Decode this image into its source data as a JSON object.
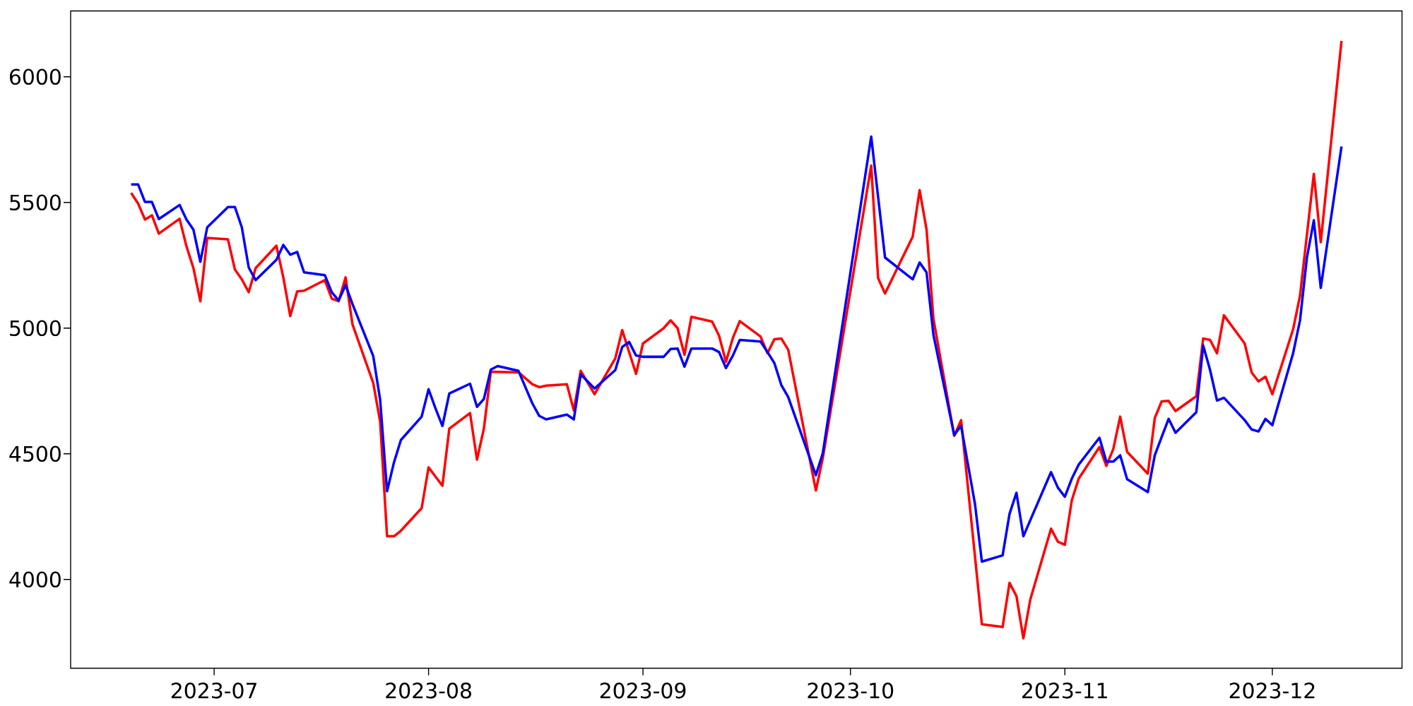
{
  "chart_data": {
    "type": "line",
    "xlim": [
      "2023-06-10T06:00",
      "2023-12-19T18:00"
    ],
    "ylim": [
      3647,
      6262
    ],
    "xticks": [
      {
        "value": "2023-07-01",
        "label": "2023-07"
      },
      {
        "value": "2023-08-01",
        "label": "2023-08"
      },
      {
        "value": "2023-09-01",
        "label": "2023-09"
      },
      {
        "value": "2023-10-01",
        "label": "2023-10"
      },
      {
        "value": "2023-11-01",
        "label": "2023-11"
      },
      {
        "value": "2023-12-01",
        "label": "2023-12"
      }
    ],
    "yticks": [
      4000,
      4500,
      5000,
      5500,
      6000
    ],
    "marker": "none",
    "line_style": "solid",
    "series": [
      {
        "color": "#ff0000",
        "x": [
          "2023-06-19",
          "2023-06-20",
          "2023-06-21",
          "2023-06-22",
          "2023-06-23",
          "2023-06-26",
          "2023-06-27",
          "2023-06-28",
          "2023-06-29",
          "2023-06-30",
          "2023-07-03",
          "2023-07-04",
          "2023-07-05",
          "2023-07-06",
          "2023-07-07",
          "2023-07-10",
          "2023-07-11",
          "2023-07-12",
          "2023-07-13",
          "2023-07-14",
          "2023-07-17",
          "2023-07-18",
          "2023-07-19",
          "2023-07-20",
          "2023-07-21",
          "2023-07-24",
          "2023-07-25",
          "2023-07-26",
          "2023-07-27",
          "2023-07-28",
          "2023-07-31",
          "2023-08-01",
          "2023-08-03",
          "2023-08-04",
          "2023-08-07",
          "2023-08-08",
          "2023-08-09",
          "2023-08-10",
          "2023-08-14",
          "2023-08-16",
          "2023-08-17",
          "2023-08-18",
          "2023-08-21",
          "2023-08-22",
          "2023-08-23",
          "2023-08-25",
          "2023-08-28",
          "2023-08-29",
          "2023-08-31",
          "2023-09-01",
          "2023-09-04",
          "2023-09-05",
          "2023-09-06",
          "2023-09-07",
          "2023-09-08",
          "2023-09-11",
          "2023-09-12",
          "2023-09-13",
          "2023-09-14",
          "2023-09-15",
          "2023-09-18",
          "2023-09-19",
          "2023-09-20",
          "2023-09-21",
          "2023-09-22",
          "2023-09-26",
          "2023-09-27",
          "2023-10-04",
          "2023-10-05",
          "2023-10-06",
          "2023-10-10",
          "2023-10-11",
          "2023-10-12",
          "2023-10-13",
          "2023-10-16",
          "2023-10-17",
          "2023-10-20",
          "2023-10-23",
          "2023-10-24",
          "2023-10-25",
          "2023-10-26",
          "2023-10-27",
          "2023-10-30",
          "2023-10-31",
          "2023-11-01",
          "2023-11-02",
          "2023-11-03",
          "2023-11-06",
          "2023-11-07",
          "2023-11-08",
          "2023-11-09",
          "2023-11-10",
          "2023-11-13",
          "2023-11-14",
          "2023-11-15",
          "2023-11-16",
          "2023-11-17",
          "2023-11-20",
          "2023-11-21",
          "2023-11-22",
          "2023-11-23",
          "2023-11-24",
          "2023-11-27",
          "2023-11-28",
          "2023-11-29",
          "2023-11-30",
          "2023-12-01",
          "2023-12-04",
          "2023-12-05",
          "2023-12-07",
          "2023-12-08",
          "2023-12-11"
        ],
        "values": [
          5538,
          5496,
          5432,
          5449,
          5376,
          5435,
          5325,
          5239,
          5107,
          5359,
          5353,
          5233,
          5194,
          5143,
          5239,
          5328,
          5202,
          5048,
          5146,
          5149,
          5191,
          5118,
          5107,
          5202,
          5015,
          4782,
          4628,
          4172,
          4172,
          4194,
          4284,
          4446,
          4373,
          4600,
          4662,
          4477,
          4600,
          4827,
          4824,
          4777,
          4765,
          4771,
          4777,
          4673,
          4830,
          4737,
          4880,
          4992,
          4818,
          4939,
          5000,
          5031,
          5000,
          4894,
          5045,
          5026,
          4970,
          4866,
          4961,
          5028,
          4967,
          4900,
          4956,
          4959,
          4914,
          4354,
          4483,
          5647,
          5199,
          5138,
          5364,
          5549,
          5393,
          5037,
          4572,
          4634,
          3822,
          3811,
          3987,
          3934,
          3766,
          3920,
          4202,
          4150,
          4138,
          4315,
          4401,
          4527,
          4452,
          4519,
          4648,
          4508,
          4421,
          4642,
          4709,
          4711,
          4670,
          4729,
          4959,
          4953,
          4900,
          5051,
          4939,
          4824,
          4788,
          4807,
          4737,
          4995,
          5129,
          5614,
          5342,
          6143
        ]
      },
      {
        "color": "#0000ff",
        "x": [
          "2023-06-19",
          "2023-06-20",
          "2023-06-21",
          "2023-06-22",
          "2023-06-23",
          "2023-06-26",
          "2023-06-27",
          "2023-06-28",
          "2023-06-29",
          "2023-06-30",
          "2023-07-03",
          "2023-07-04",
          "2023-07-05",
          "2023-07-06",
          "2023-07-07",
          "2023-07-10",
          "2023-07-11",
          "2023-07-12",
          "2023-07-13",
          "2023-07-14",
          "2023-07-17",
          "2023-07-18",
          "2023-07-19",
          "2023-07-20",
          "2023-07-21",
          "2023-07-24",
          "2023-07-25",
          "2023-07-26",
          "2023-07-27",
          "2023-07-28",
          "2023-07-31",
          "2023-08-01",
          "2023-08-02",
          "2023-08-03",
          "2023-08-04",
          "2023-08-07",
          "2023-08-08",
          "2023-08-09",
          "2023-08-10",
          "2023-08-11",
          "2023-08-14",
          "2023-08-16",
          "2023-08-17",
          "2023-08-18",
          "2023-08-21",
          "2023-08-22",
          "2023-08-23",
          "2023-08-25",
          "2023-08-28",
          "2023-08-29",
          "2023-08-30",
          "2023-08-31",
          "2023-09-01",
          "2023-09-04",
          "2023-09-05",
          "2023-09-06",
          "2023-09-07",
          "2023-09-08",
          "2023-09-11",
          "2023-09-12",
          "2023-09-13",
          "2023-09-14",
          "2023-09-15",
          "2023-09-18",
          "2023-09-19",
          "2023-09-20",
          "2023-09-21",
          "2023-09-22",
          "2023-09-26",
          "2023-09-27",
          "2023-10-04",
          "2023-10-06",
          "2023-10-10",
          "2023-10-11",
          "2023-10-12",
          "2023-10-13",
          "2023-10-16",
          "2023-10-17",
          "2023-10-19",
          "2023-10-20",
          "2023-10-23",
          "2023-10-24",
          "2023-10-25",
          "2023-10-26",
          "2023-10-30",
          "2023-10-31",
          "2023-11-01",
          "2023-11-02",
          "2023-11-03",
          "2023-11-06",
          "2023-11-07",
          "2023-11-08",
          "2023-11-09",
          "2023-11-10",
          "2023-11-13",
          "2023-11-14",
          "2023-11-15",
          "2023-11-16",
          "2023-11-17",
          "2023-11-20",
          "2023-11-21",
          "2023-11-22",
          "2023-11-23",
          "2023-11-24",
          "2023-11-27",
          "2023-11-28",
          "2023-11-29",
          "2023-11-30",
          "2023-12-01",
          "2023-12-04",
          "2023-12-05",
          "2023-12-06",
          "2023-12-07",
          "2023-12-08",
          "2023-12-11"
        ],
        "values": [
          5572,
          5572,
          5502,
          5502,
          5434,
          5490,
          5432,
          5392,
          5264,
          5401,
          5482,
          5482,
          5401,
          5241,
          5191,
          5272,
          5331,
          5292,
          5303,
          5222,
          5211,
          5143,
          5110,
          5171,
          5096,
          4889,
          4715,
          4351,
          4466,
          4555,
          4648,
          4757,
          4681,
          4611,
          4740,
          4779,
          4687,
          4718,
          4835,
          4849,
          4830,
          4701,
          4651,
          4637,
          4656,
          4637,
          4816,
          4760,
          4833,
          4925,
          4945,
          4891,
          4886,
          4886,
          4917,
          4919,
          4847,
          4919,
          4919,
          4905,
          4841,
          4891,
          4953,
          4947,
          4905,
          4861,
          4774,
          4726,
          4415,
          4502,
          5762,
          5281,
          5194,
          5261,
          5222,
          4973,
          4575,
          4611,
          4301,
          4071,
          4096,
          4261,
          4345,
          4172,
          4427,
          4365,
          4329,
          4401,
          4457,
          4564,
          4469,
          4469,
          4494,
          4399,
          4348,
          4494,
          4567,
          4639,
          4584,
          4665,
          4931,
          4833,
          4712,
          4723,
          4634,
          4597,
          4589,
          4639,
          4614,
          4900,
          5031,
          5281,
          5429,
          5160,
          5723
        ]
      }
    ]
  }
}
